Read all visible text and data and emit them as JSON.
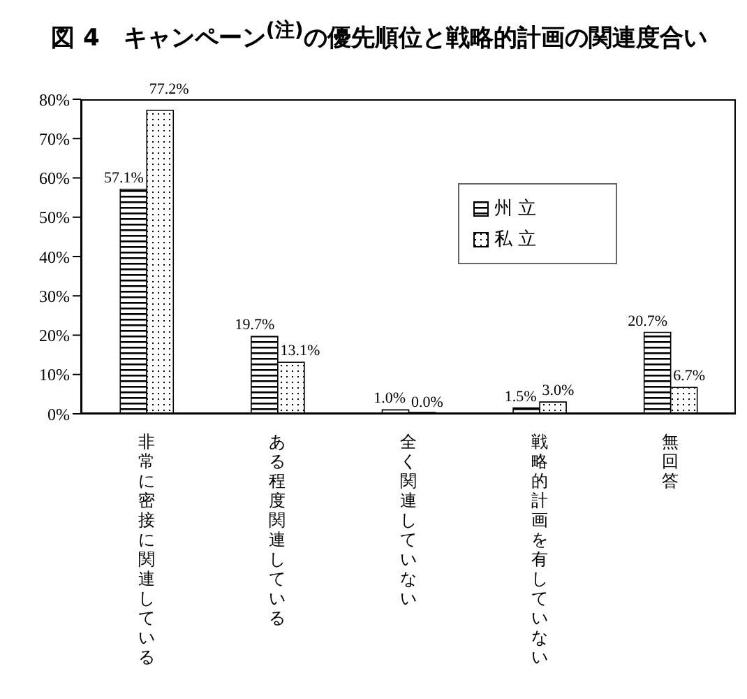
{
  "chart_data": {
    "type": "bar",
    "title": "図 4　キャンペーン$^{(注)}$の優先順位と戦略的計画の関連度合い",
    "categories": [
      "非常に密接に関連している",
      "ある程度関連している",
      "全く関連していない",
      "戦略的計画を有していない",
      "無回答"
    ],
    "series": [
      {
        "name": "州 立",
        "color": "#000000",
        "values": [
          57.1,
          19.7,
          1.0,
          1.5,
          20.7
        ],
        "value_labels": [
          "57.1%",
          "19.7%",
          "1.0%",
          "1.5%",
          "20.7%"
        ]
      },
      {
        "name": "私 立",
        "color": "#000000",
        "values": [
          77.2,
          13.1,
          0.0,
          3.0,
          6.7
        ],
        "value_labels": [
          "77.2%",
          "13.1%",
          "0.0%",
          "3.0%",
          "6.7%"
        ]
      }
    ],
    "ylim": [
      0,
      80
    ],
    "yticks": [
      {
        "value": 0,
        "label": "0%"
      },
      {
        "value": 10,
        "label": "10%"
      },
      {
        "value": 20,
        "label": "20%"
      },
      {
        "value": 30,
        "label": "30%"
      },
      {
        "value": 40,
        "label": "40%"
      },
      {
        "value": 50,
        "label": "50%"
      },
      {
        "value": 60,
        "label": "60%"
      },
      {
        "value": 70,
        "label": "70%"
      },
      {
        "value": 80,
        "label": "80%"
      }
    ],
    "grid": false,
    "legend": "top right"
  }
}
